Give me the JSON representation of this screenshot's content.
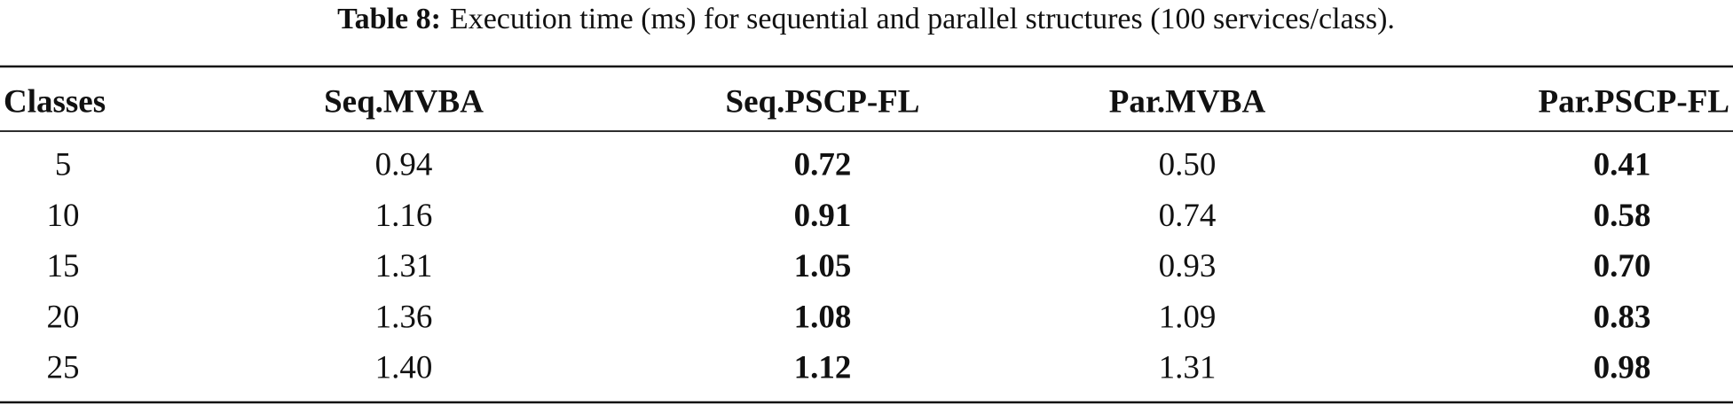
{
  "caption": {
    "label": "Table 8:",
    "text": "Execution time (ms) for sequential and parallel structures (100 services/class)."
  },
  "table": {
    "header": [
      "Classes",
      "Seq.MVBA",
      "Seq.PSCP-FL",
      "Par.MVBA",
      "Par.PSCP-FL"
    ],
    "rows": [
      [
        "5",
        "0.94",
        "0.72",
        "0.50",
        "0.41"
      ],
      [
        "10",
        "1.16",
        "0.91",
        "0.74",
        "0.58"
      ],
      [
        "15",
        "1.31",
        "1.05",
        "0.93",
        "0.70"
      ],
      [
        "20",
        "1.36",
        "1.08",
        "1.09",
        "0.83"
      ],
      [
        "25",
        "1.40",
        "1.12",
        "1.31",
        "0.98"
      ]
    ]
  }
}
